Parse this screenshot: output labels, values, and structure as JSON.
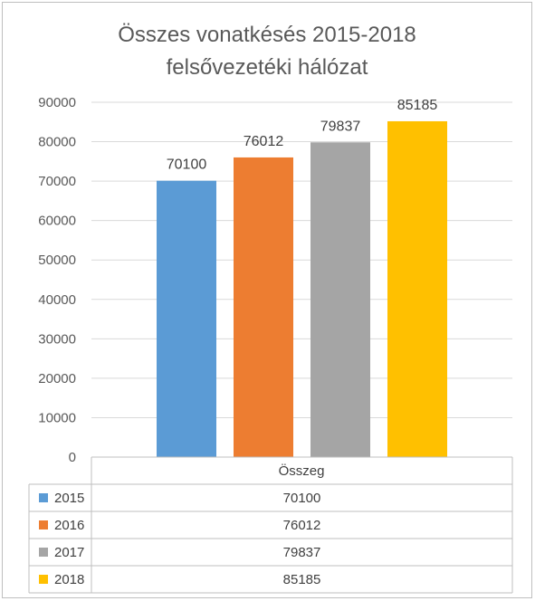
{
  "chart_data": {
    "type": "bar",
    "title": [
      "Összes vonatkésés 2015-2018",
      "felsővezetéki hálózat"
    ],
    "categories": [
      "Összeg"
    ],
    "series": [
      {
        "name": "2015",
        "color": "#5b9bd5",
        "values": [
          70100
        ]
      },
      {
        "name": "2016",
        "color": "#ed7d31",
        "values": [
          76012
        ]
      },
      {
        "name": "2017",
        "color": "#a5a5a5",
        "values": [
          79837
        ]
      },
      {
        "name": "2018",
        "color": "#ffc000",
        "values": [
          85185
        ]
      }
    ],
    "ylim": [
      0,
      90000
    ],
    "yticks": [
      "0",
      "10000",
      "20000",
      "30000",
      "40000",
      "50000",
      "60000",
      "70000",
      "80000",
      "90000"
    ],
    "grid": true,
    "legend": "data-table",
    "data_table": {
      "header": "Összeg",
      "rows": [
        {
          "label": "2015",
          "value": "70100"
        },
        {
          "label": "2016",
          "value": "76012"
        },
        {
          "label": "2017",
          "value": "79837"
        },
        {
          "label": "2018",
          "value": "85185"
        }
      ]
    }
  }
}
